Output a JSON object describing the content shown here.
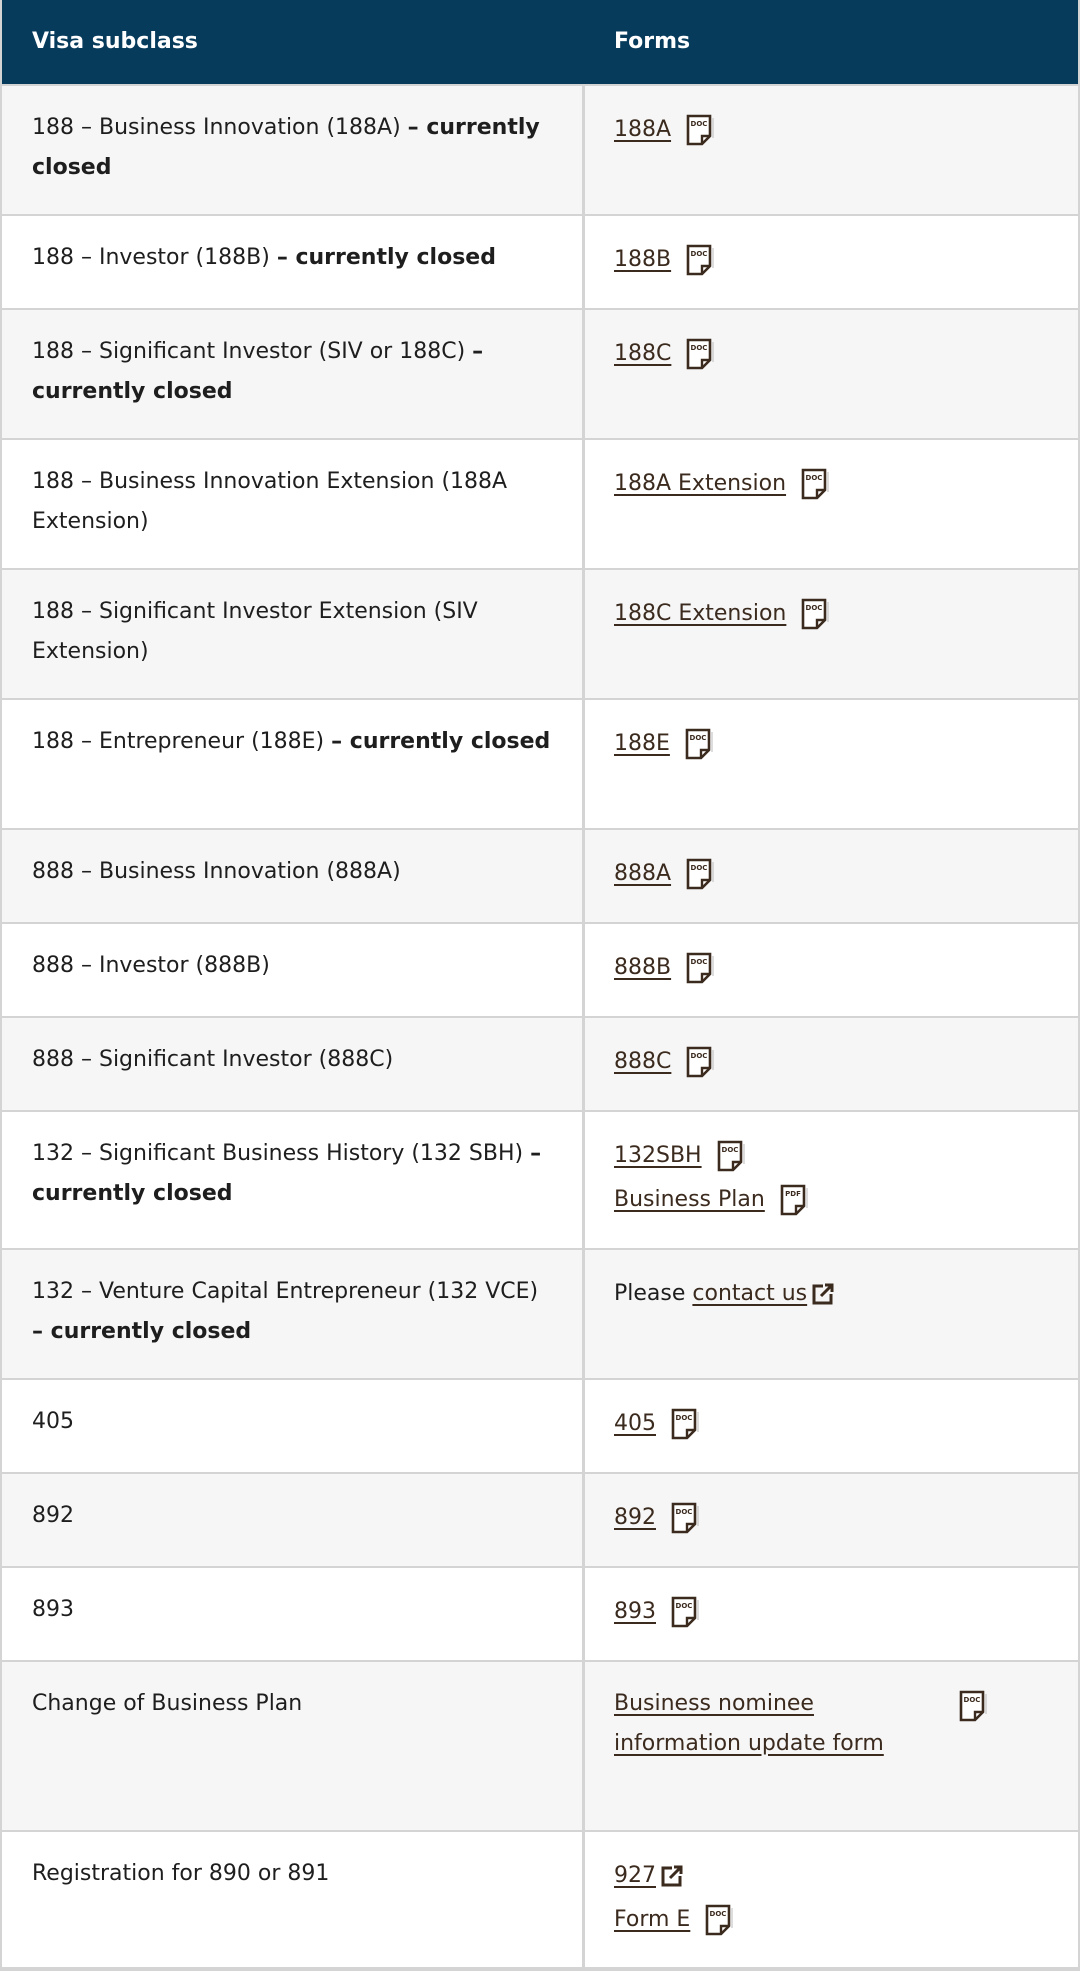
{
  "table": {
    "headers": [
      "Visa subclass",
      "Forms"
    ],
    "rows": [
      {
        "subclass": {
          "text": "188 – Business Innovation (188A)",
          "note": "– currently closed"
        },
        "forms": [
          {
            "text": "188A",
            "icon": "DOC"
          }
        ]
      },
      {
        "subclass": {
          "text": "188 – Investor (188B)",
          "note": "– currently closed"
        },
        "forms": [
          {
            "text": "188B",
            "icon": "DOC"
          }
        ]
      },
      {
        "subclass": {
          "text": "188 – Significant Investor (SIV or 188C)",
          "note": "– currently closed"
        },
        "forms": [
          {
            "text": "188C",
            "icon": "DOC"
          }
        ]
      },
      {
        "subclass": {
          "text": "188 – Business Innovation Extension (188A Extension)"
        },
        "forms": [
          {
            "text": "188A Extension",
            "icon": "DOC"
          }
        ]
      },
      {
        "subclass": {
          "text": "188 – Significant Investor Extension (SIV Extension)"
        },
        "forms": [
          {
            "text": "188C Extension",
            "icon": "DOC"
          }
        ]
      },
      {
        "subclass": {
          "text": "188 – Entrepreneur (188E)",
          "note": "– currently closed"
        },
        "forms": [
          {
            "text": "188E",
            "icon": "DOC"
          }
        ]
      },
      {
        "subclass": {
          "text": "888 – Business Innovation (888A)"
        },
        "forms": [
          {
            "text": "888A",
            "icon": "DOC"
          }
        ]
      },
      {
        "subclass": {
          "text": "888 – Investor (888B)"
        },
        "forms": [
          {
            "text": "888B",
            "icon": "DOC"
          }
        ]
      },
      {
        "subclass": {
          "text": "888 – Significant Investor (888C)"
        },
        "forms": [
          {
            "text": "888C",
            "icon": "DOC"
          }
        ]
      },
      {
        "subclass": {
          "text": "132 – Significant Business History (132 SBH)",
          "note": "– currently closed"
        },
        "forms": [
          {
            "text": "132SBH",
            "icon": "DOC"
          },
          {
            "text": "Business Plan",
            "icon": "PDF"
          }
        ]
      },
      {
        "subclass": {
          "text": "132 – Venture Capital Entrepreneur (132 VCE)",
          "note": "– currently closed"
        },
        "forms": [
          {
            "prefix": "Please",
            "text": "contact us",
            "external": true
          }
        ]
      },
      {
        "subclass": {
          "text": "405"
        },
        "forms": [
          {
            "text": "405",
            "icon": "DOC"
          }
        ]
      },
      {
        "subclass": {
          "text": "892"
        },
        "forms": [
          {
            "text": "892",
            "icon": "DOC"
          }
        ]
      },
      {
        "subclass": {
          "text": "893"
        },
        "forms": [
          {
            "text": "893",
            "icon": "DOC"
          }
        ]
      },
      {
        "subclass": {
          "text": "Change of Business Plan"
        },
        "forms": [
          {
            "text": "Business nominee information update form",
            "icon": "DOC"
          }
        ]
      },
      {
        "subclass": {
          "text": "Registration for 890 or 891"
        },
        "forms": [
          {
            "text": "927",
            "external": true
          },
          {
            "text": "Form E",
            "icon": "DOC"
          }
        ]
      }
    ]
  }
}
